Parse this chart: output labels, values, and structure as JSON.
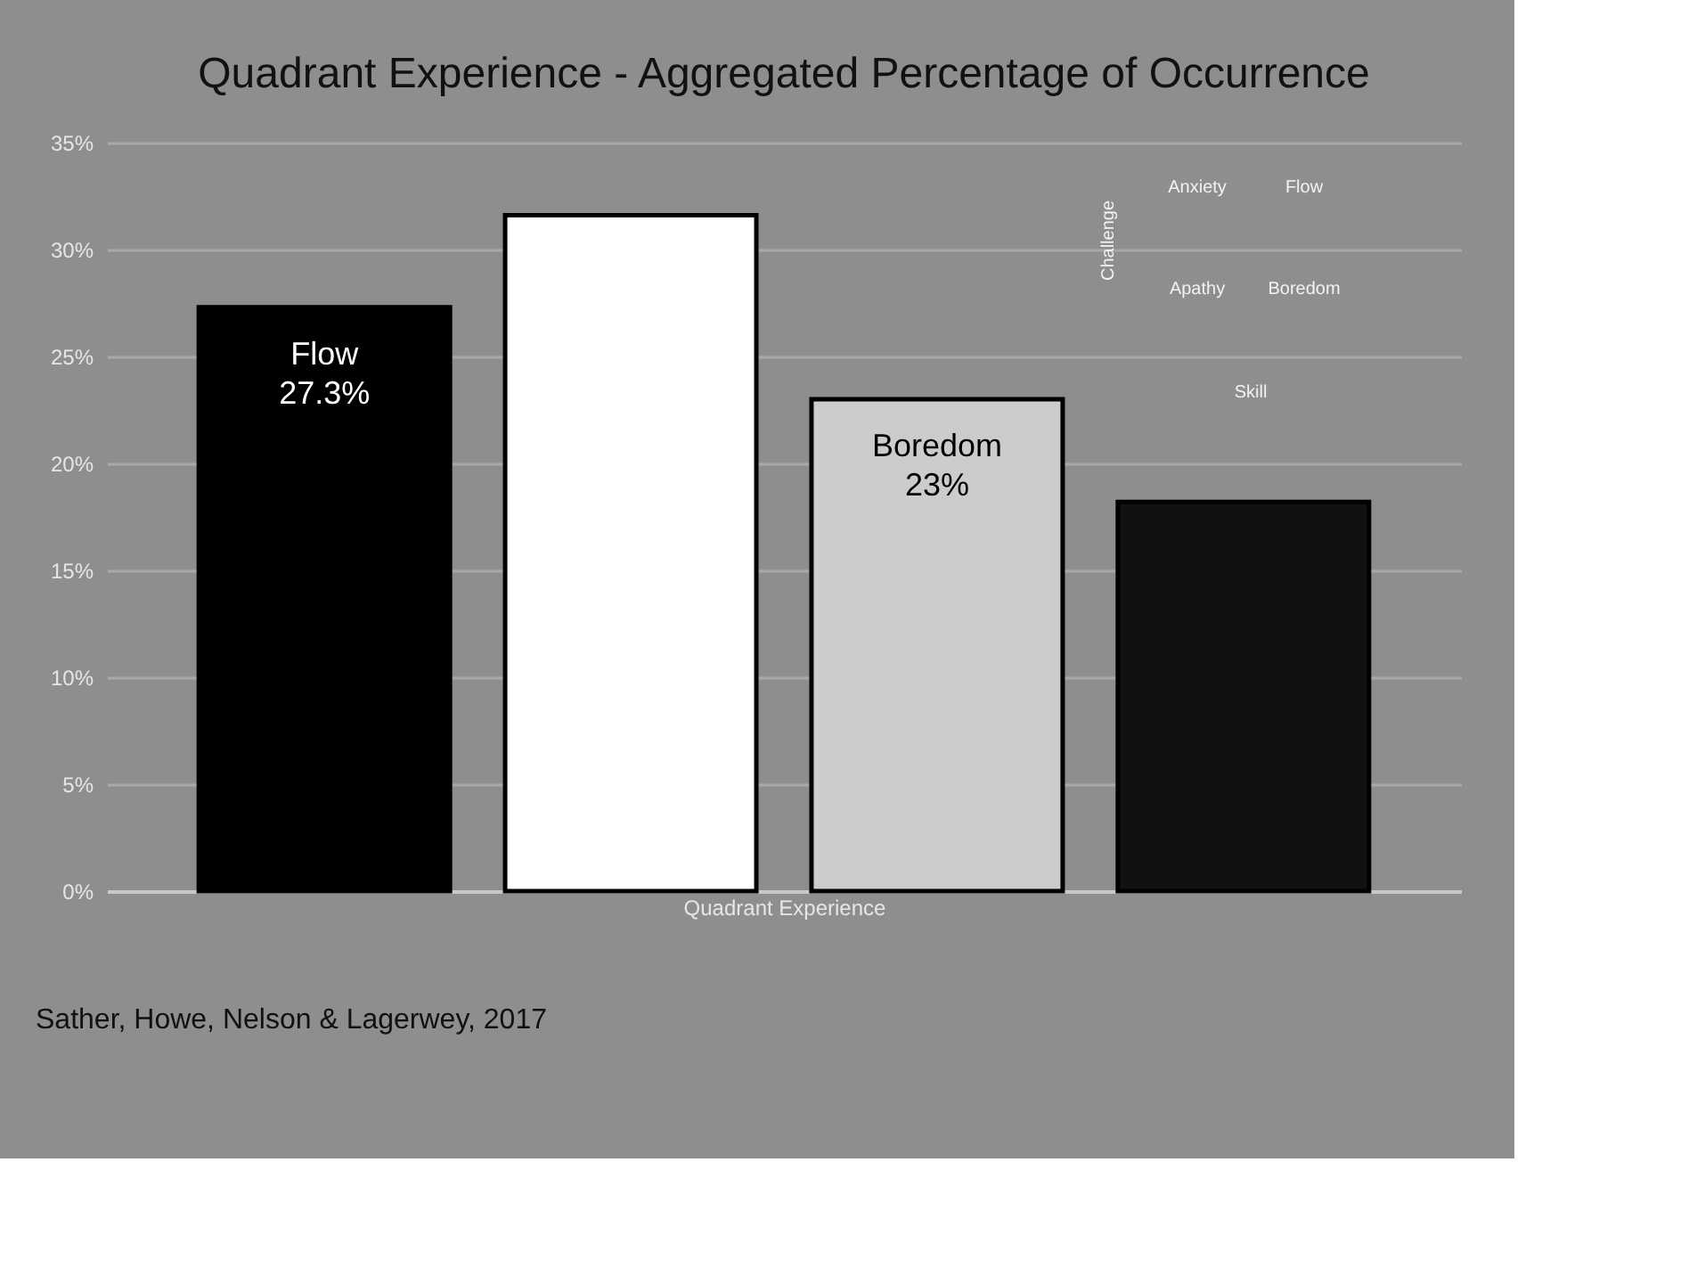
{
  "chart_data": {
    "type": "bar",
    "title": "Quadrant Experience - Aggregated Percentage of Occurrence",
    "xlabel": "Quadrant Experience",
    "categories": [
      null,
      null,
      null,
      null
    ],
    "values": [
      27.3,
      31.6,
      23,
      18.2
    ],
    "colors": [
      "#000000",
      "#ffffff",
      "#cccccc",
      "#111111"
    ],
    "value_labels": [
      "Flow\n27.3%",
      null,
      "Boredom\n23%",
      null
    ],
    "ylim": [
      0,
      35
    ],
    "yticks": [
      {
        "value": 0,
        "label": "0%"
      },
      {
        "value": 5,
        "label": "5%"
      },
      {
        "value": 10,
        "label": "10%"
      },
      {
        "value": 15,
        "label": "15%"
      },
      {
        "value": 20,
        "label": "20%"
      },
      {
        "value": 25,
        "label": "25%"
      },
      {
        "value": 30,
        "label": "30%"
      },
      {
        "value": 35,
        "label": "35%"
      }
    ],
    "grid": "y",
    "tick_labels": "y",
    "annotations": [
      "Anxiety",
      "Flow",
      "Apathy",
      "Boredom",
      "Challenge",
      "Skill",
      "Sather, Howe, Nelson & Lagerwey, 2017"
    ]
  }
}
